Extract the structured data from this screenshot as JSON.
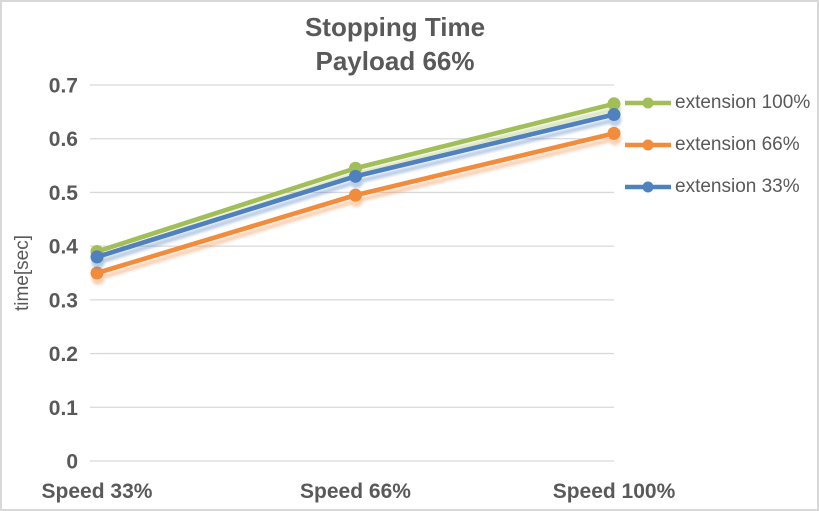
{
  "title": {
    "line1": "Stopping Time",
    "line2": "Payload 66%"
  },
  "chart_data": {
    "type": "line",
    "categories": [
      "Speed 33%",
      "Speed 66%",
      "Speed 100%"
    ],
    "series": [
      {
        "name": "extension 100%",
        "color": "#A2BE59",
        "values": [
          0.39,
          0.545,
          0.665
        ]
      },
      {
        "name": "extension 66%",
        "color": "#F18C3D",
        "values": [
          0.35,
          0.495,
          0.61
        ]
      },
      {
        "name": "extension 33%",
        "color": "#4F81BE",
        "values": [
          0.38,
          0.53,
          0.645
        ]
      }
    ],
    "xlabel": "",
    "ylabel": "time[sec]",
    "ylim": [
      0,
      0.7
    ],
    "ytick_labels": [
      "0",
      "0.1",
      "0.2",
      "0.3",
      "0.4",
      "0.5",
      "0.6",
      "0.7"
    ],
    "grid": true,
    "marker": "circle",
    "legend_position": "right",
    "legend": [
      "extension 100%",
      "extension 66%",
      "extension 33%"
    ]
  },
  "colors": {
    "text": "#595959",
    "gridline": "#D9D9D9",
    "frame_border": "#D8D8D8",
    "background": "#FFFFFF"
  }
}
